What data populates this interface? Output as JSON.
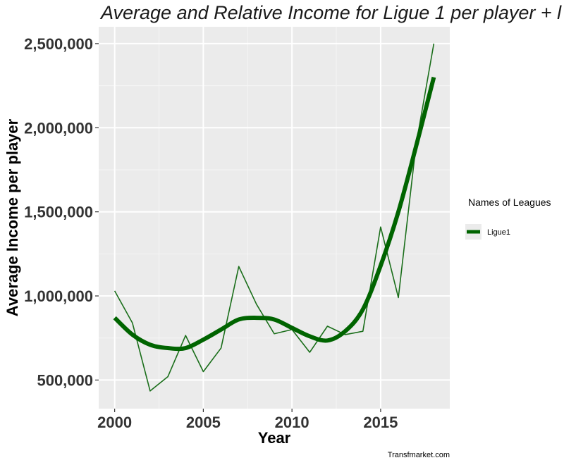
{
  "chart_data": {
    "type": "line",
    "title": "Average and Relative  Income for Ligue 1  per player + l",
    "xlabel": "Year",
    "ylabel": "Average Income  per player",
    "caption": "Transfmarket.com",
    "x_ticks": [
      2000,
      2005,
      2010,
      2015
    ],
    "x_tick_labels": [
      "2000",
      "2005",
      "2010",
      "2015"
    ],
    "y_ticks": [
      500000,
      1000000,
      1500000,
      2000000,
      2500000
    ],
    "y_tick_labels": [
      "500,000",
      "1,000,000",
      "1,500,000",
      "2,000,000",
      "2,500,000"
    ],
    "xlim": [
      1999.1,
      2018.9
    ],
    "ylim": [
      330000,
      2600000
    ],
    "grid": true,
    "legend_position": "right",
    "legend_title": "Names of Leagues",
    "legend_entries": [
      "Ligue1"
    ],
    "series": [
      {
        "name": "Ligue1",
        "kind": "raw",
        "color": "#1a6e1a",
        "x": [
          2000,
          2001,
          2002,
          2003,
          2004,
          2005,
          2006,
          2007,
          2008,
          2009,
          2010,
          2011,
          2012,
          2013,
          2014,
          2015,
          2016,
          2017,
          2018
        ],
        "y": [
          1030000,
          840000,
          435000,
          520000,
          765000,
          550000,
          690000,
          1175000,
          950000,
          775000,
          800000,
          665000,
          820000,
          770000,
          790000,
          1410000,
          990000,
          1900000,
          2500000
        ]
      },
      {
        "name": "Ligue1",
        "kind": "smooth",
        "color": "#006400",
        "x": [
          2000,
          2001,
          2002,
          2003,
          2004,
          2005,
          2006,
          2007,
          2008,
          2009,
          2010,
          2011,
          2012,
          2013,
          2014,
          2015,
          2016,
          2017,
          2018
        ],
        "y": [
          870000,
          770000,
          710000,
          690000,
          690000,
          740000,
          800000,
          860000,
          870000,
          860000,
          810000,
          760000,
          735000,
          790000,
          920000,
          1180000,
          1500000,
          1890000,
          2300000
        ]
      }
    ]
  }
}
